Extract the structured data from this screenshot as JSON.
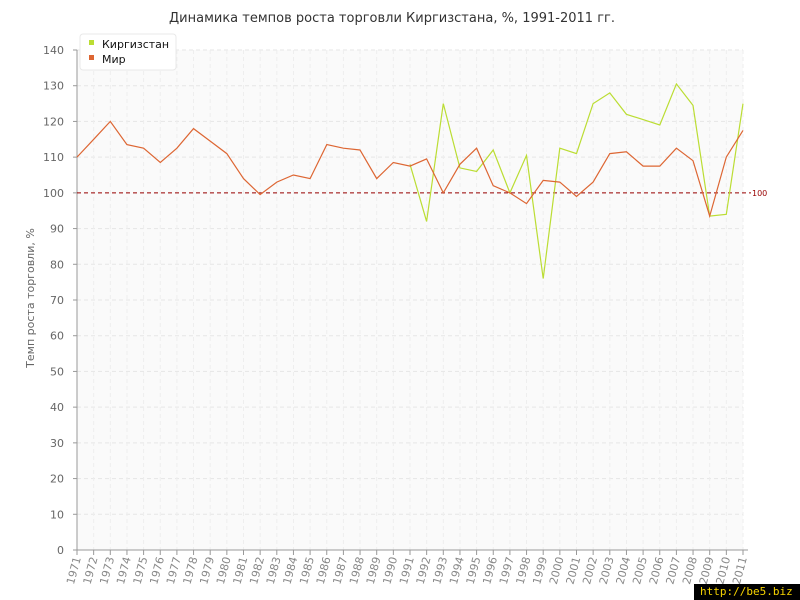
{
  "chart_data": {
    "type": "line",
    "title": "Динамика темпов роста торговли Киргизстана, %, 1991-2011 гг.",
    "ylabel": "Темп роста торговли, %",
    "xlabel": "",
    "ylim": [
      0,
      140
    ],
    "yticks": [
      0,
      10,
      20,
      30,
      40,
      50,
      60,
      70,
      80,
      90,
      100,
      110,
      120,
      130,
      140
    ],
    "grid": true,
    "legend_position": "top-left",
    "reference_line": {
      "value": 100,
      "label": "100",
      "color": "#990000",
      "style": "dashed"
    },
    "x": [
      "1971",
      "1972",
      "1973",
      "1974",
      "1975",
      "1976",
      "1977",
      "1978",
      "1979",
      "1980",
      "1981",
      "1982",
      "1983",
      "1984",
      "1985",
      "1986",
      "1987",
      "1988",
      "1989",
      "1990",
      "1991",
      "1992",
      "1993",
      "1994",
      "1995",
      "1996",
      "1997",
      "1998",
      "1999",
      "2000",
      "2001",
      "2002",
      "2003",
      "2004",
      "2005",
      "2006",
      "2007",
      "2008",
      "2009",
      "2010",
      "2011"
    ],
    "series": [
      {
        "name": "Киргизстан",
        "color": "#bbdd33",
        "values": [
          null,
          null,
          null,
          null,
          null,
          null,
          null,
          null,
          null,
          null,
          null,
          null,
          null,
          null,
          null,
          null,
          null,
          null,
          null,
          null,
          108,
          92,
          125,
          107,
          106,
          112,
          100,
          110.5,
          76,
          112.5,
          111,
          125,
          128,
          122,
          120.5,
          119,
          130.5,
          124.5,
          93.5,
          94,
          125
        ]
      },
      {
        "name": "Мир",
        "color": "#dd6633",
        "values": [
          110,
          115,
          120,
          113.5,
          112.5,
          108.5,
          112.5,
          118,
          114.5,
          111,
          104,
          99.5,
          103,
          105,
          104,
          113.5,
          112.5,
          112,
          104,
          108.5,
          107.5,
          109.5,
          100,
          108,
          112.5,
          102,
          100,
          97,
          103.5,
          103,
          99,
          103,
          111,
          111.5,
          107.5,
          107.5,
          112.5,
          109,
          93.5,
          110,
          117.5
        ]
      }
    ]
  },
  "watermark": "http://be5.biz"
}
